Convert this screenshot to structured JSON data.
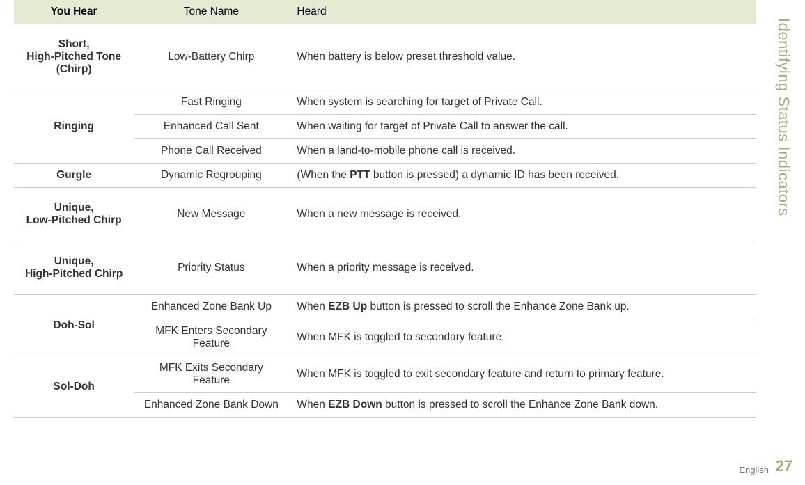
{
  "side_tab": "Identifying Status Indicators",
  "page_number": "27",
  "language": "English",
  "table": {
    "header_bg": "#e3ebd2",
    "border_color": "#c8cfbf",
    "text_color": "#333333",
    "font_size_pt": 12,
    "columns": [
      "You Hear",
      "Tone Name",
      "Heard"
    ],
    "rows": [
      {
        "youhear": "Short, High-Pitched Tone (Chirp)",
        "tone": "Low-Battery Chirp",
        "heard": [
          "When battery is below preset threshold value."
        ]
      },
      {
        "youhear": "Ringing",
        "group": [
          {
            "tone": "Fast Ringing",
            "heard": [
              "When system is searching for target of Private Call."
            ]
          },
          {
            "tone": "Enhanced Call Sent",
            "heard": [
              "When waiting for target of Private Call to answer the call."
            ]
          },
          {
            "tone": "Phone Call Received",
            "heard": [
              "When a land-to-mobile phone call is received."
            ]
          }
        ]
      },
      {
        "youhear": "Gurgle",
        "tone": "Dynamic Regrouping",
        "heard": [
          "(When the ",
          "PTT",
          " button is pressed) a dynamic ID has been received."
        ],
        "bold_idx": [
          1
        ]
      },
      {
        "youhear": "Unique, Low-Pitched Chirp",
        "tone": "New Message",
        "heard": [
          "When a new message is received."
        ]
      },
      {
        "youhear": "Unique, High-Pitched Chirp",
        "tone": "Priority Status",
        "heard": [
          "When a priority message is received."
        ]
      },
      {
        "youhear": "Doh-Sol",
        "group": [
          {
            "tone": "Enhanced Zone Bank Up",
            "heard": [
              "When ",
              "EZB Up",
              " button is pressed to scroll the Enhance Zone Bank up."
            ],
            "bold_idx": [
              1
            ]
          },
          {
            "tone": "MFK Enters Secondary Feature",
            "heard": [
              "When MFK is toggled to secondary feature."
            ]
          }
        ]
      },
      {
        "youhear": "Sol-Doh",
        "group": [
          {
            "tone": "MFK Exits Secondary Feature",
            "heard": [
              "When MFK is toggled to exit secondary feature and return to primary feature."
            ]
          },
          {
            "tone": "Enhanced Zone Bank Down",
            "heard": [
              "When ",
              "EZB Down",
              " button is pressed to scroll the Enhance Zone Bank down."
            ],
            "bold_idx": [
              1
            ]
          }
        ]
      }
    ]
  }
}
